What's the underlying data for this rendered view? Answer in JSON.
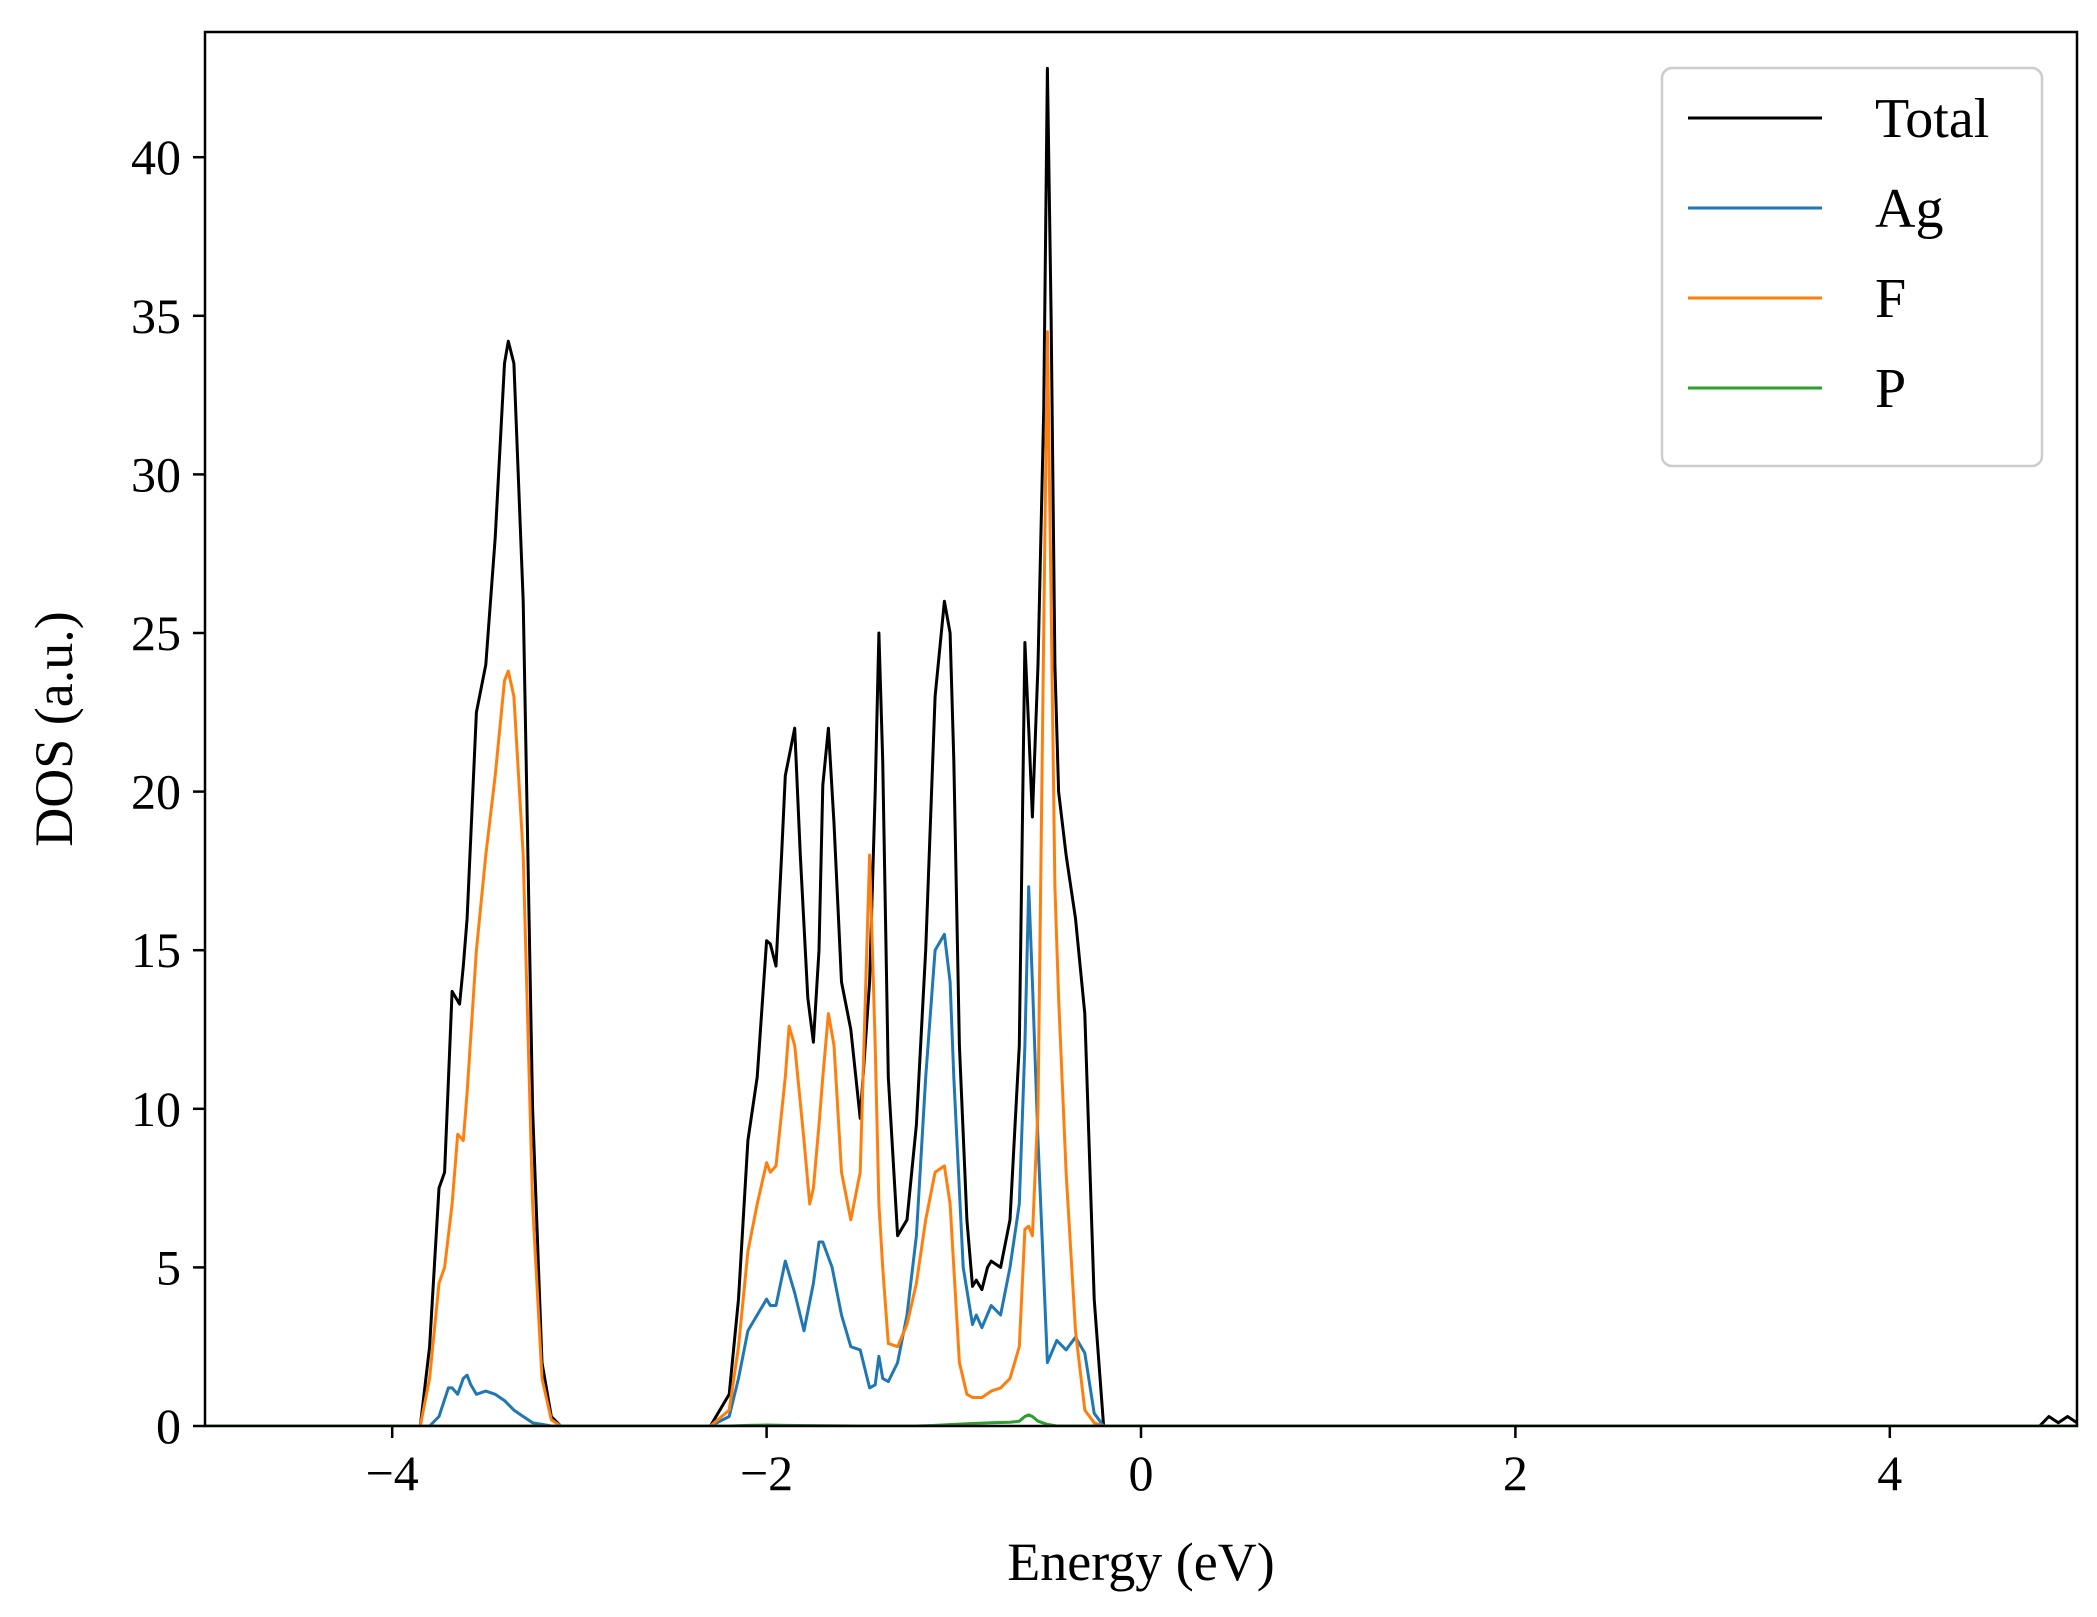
{
  "chart_data": {
    "type": "line",
    "title": "",
    "xlabel": "Energy (eV)",
    "ylabel": "DOS (a.u.)",
    "xlim": [
      -5,
      5
    ],
    "ylim": [
      0,
      44
    ],
    "xticks": [
      -4,
      -2,
      0,
      2,
      4
    ],
    "xtick_labels": [
      "−4",
      "−2",
      "0",
      "2",
      "4"
    ],
    "yticks": [
      0,
      5,
      10,
      15,
      20,
      25,
      30,
      35,
      40
    ],
    "ytick_labels": [
      "0",
      "5",
      "10",
      "15",
      "20",
      "25",
      "30",
      "35",
      "40"
    ],
    "grid": false,
    "legend_position": "top-right",
    "series": [
      {
        "name": "Total",
        "color": "#000000",
        "x": [
          -5.0,
          -3.85,
          -3.8,
          -3.75,
          -3.72,
          -3.68,
          -3.64,
          -3.62,
          -3.6,
          -3.55,
          -3.5,
          -3.45,
          -3.4,
          -3.38,
          -3.35,
          -3.3,
          -3.25,
          -3.2,
          -3.15,
          -3.1,
          -2.3,
          -2.2,
          -2.15,
          -2.1,
          -2.05,
          -2.0,
          -1.98,
          -1.95,
          -1.92,
          -1.9,
          -1.85,
          -1.82,
          -1.78,
          -1.75,
          -1.72,
          -1.7,
          -1.67,
          -1.64,
          -1.6,
          -1.55,
          -1.5,
          -1.45,
          -1.42,
          -1.4,
          -1.38,
          -1.35,
          -1.3,
          -1.25,
          -1.2,
          -1.15,
          -1.1,
          -1.05,
          -1.02,
          -1.0,
          -0.97,
          -0.93,
          -0.9,
          -0.88,
          -0.85,
          -0.82,
          -0.8,
          -0.75,
          -0.7,
          -0.65,
          -0.62,
          -0.6,
          -0.58,
          -0.55,
          -0.52,
          -0.5,
          -0.48,
          -0.46,
          -0.44,
          -0.4,
          -0.35,
          -0.3,
          -0.25,
          -0.2,
          4.8,
          4.85,
          4.9,
          4.95,
          5.0
        ],
        "y": [
          0,
          0,
          2.5,
          7.5,
          8.0,
          13.7,
          13.3,
          14.5,
          16,
          22.5,
          24,
          28,
          33.5,
          34.2,
          33.5,
          26,
          10,
          2,
          0.3,
          0,
          0,
          1,
          4,
          9,
          11,
          15.3,
          15.2,
          14.5,
          18,
          20.5,
          22,
          18,
          13.5,
          12.1,
          15,
          20.2,
          22,
          19,
          14,
          12.5,
          9.7,
          14,
          20,
          25,
          21,
          11,
          6,
          6.5,
          9.5,
          15,
          23,
          26,
          25,
          21,
          12,
          6.5,
          4.4,
          4.6,
          4.3,
          5.0,
          5.2,
          5.0,
          6.5,
          12,
          24.7,
          22,
          19.2,
          24,
          32,
          42.8,
          35,
          24,
          20,
          18,
          16,
          13,
          4,
          0,
          0,
          0.3,
          0.1,
          0.3,
          0.1
        ]
      },
      {
        "name": "Ag",
        "color": "#1f77b4",
        "x": [
          -5.0,
          -3.8,
          -3.75,
          -3.7,
          -3.68,
          -3.65,
          -3.62,
          -3.6,
          -3.58,
          -3.55,
          -3.5,
          -3.45,
          -3.4,
          -3.35,
          -3.3,
          -3.25,
          -3.2,
          -3.15,
          -2.3,
          -2.2,
          -2.15,
          -2.1,
          -2.05,
          -2.0,
          -1.98,
          -1.95,
          -1.9,
          -1.85,
          -1.8,
          -1.75,
          -1.72,
          -1.7,
          -1.65,
          -1.6,
          -1.55,
          -1.5,
          -1.45,
          -1.42,
          -1.4,
          -1.38,
          -1.35,
          -1.3,
          -1.25,
          -1.2,
          -1.15,
          -1.1,
          -1.05,
          -1.02,
          -1.0,
          -0.95,
          -0.9,
          -0.88,
          -0.85,
          -0.8,
          -0.75,
          -0.7,
          -0.65,
          -0.62,
          -0.6,
          -0.58,
          -0.55,
          -0.5,
          -0.45,
          -0.4,
          -0.35,
          -0.3,
          -0.25,
          -0.2,
          5.0
        ],
        "y": [
          0,
          0,
          0.3,
          1.2,
          1.2,
          1.0,
          1.5,
          1.6,
          1.3,
          1.0,
          1.1,
          1.0,
          0.8,
          0.5,
          0.3,
          0.1,
          0.05,
          0,
          0,
          0.3,
          1.5,
          3,
          3.5,
          4,
          3.8,
          3.8,
          5.2,
          4.2,
          3,
          4.5,
          5.8,
          5.8,
          5,
          3.5,
          2.5,
          2.4,
          1.2,
          1.3,
          2.2,
          1.5,
          1.4,
          2,
          3.5,
          6,
          11,
          15,
          15.5,
          14,
          11,
          5,
          3.2,
          3.5,
          3.1,
          3.8,
          3.5,
          5,
          7,
          12,
          17,
          14,
          9,
          2,
          2.7,
          2.4,
          2.8,
          2.3,
          0.4,
          0,
          0
        ]
      },
      {
        "name": "F",
        "color": "#ff7f0e",
        "x": [
          -5.0,
          -3.85,
          -3.8,
          -3.75,
          -3.72,
          -3.68,
          -3.65,
          -3.62,
          -3.6,
          -3.55,
          -3.5,
          -3.45,
          -3.4,
          -3.38,
          -3.35,
          -3.3,
          -3.25,
          -3.2,
          -3.15,
          -3.1,
          -2.3,
          -2.2,
          -2.15,
          -2.1,
          -2.05,
          -2.0,
          -1.98,
          -1.95,
          -1.9,
          -1.88,
          -1.85,
          -1.8,
          -1.77,
          -1.75,
          -1.72,
          -1.7,
          -1.67,
          -1.64,
          -1.6,
          -1.55,
          -1.5,
          -1.45,
          -1.42,
          -1.4,
          -1.38,
          -1.35,
          -1.3,
          -1.25,
          -1.2,
          -1.15,
          -1.1,
          -1.05,
          -1.02,
          -1.0,
          -0.97,
          -0.93,
          -0.9,
          -0.85,
          -0.8,
          -0.75,
          -0.7,
          -0.65,
          -0.62,
          -0.6,
          -0.58,
          -0.55,
          -0.52,
          -0.5,
          -0.48,
          -0.46,
          -0.44,
          -0.4,
          -0.35,
          -0.3,
          -0.25,
          -0.2,
          5.0
        ],
        "y": [
          0,
          0,
          1.5,
          4.5,
          5,
          7,
          9.2,
          9.0,
          10.5,
          15,
          18,
          20.5,
          23.5,
          23.8,
          23,
          18,
          7,
          1.5,
          0.2,
          0,
          0,
          0.5,
          2.5,
          5.5,
          7,
          8.3,
          8.0,
          8.2,
          11,
          12.6,
          12.0,
          9,
          7,
          7.5,
          9.5,
          11.0,
          13,
          12,
          8,
          6.5,
          8.0,
          18.0,
          12,
          7,
          5,
          2.6,
          2.5,
          3.2,
          4.5,
          6.5,
          8,
          8.2,
          7,
          5,
          2,
          1,
          0.9,
          0.9,
          1.1,
          1.2,
          1.5,
          2.5,
          6.2,
          6.3,
          6.0,
          10,
          25,
          34.5,
          26,
          17,
          13.5,
          8,
          3,
          0.5,
          0.1,
          0,
          0
        ]
      },
      {
        "name": "P",
        "color": "#2ca02c",
        "x": [
          -5.0,
          -2.2,
          -2.1,
          -2.0,
          -1.9,
          -1.5,
          -1.2,
          -1.1,
          -1.0,
          -0.9,
          -0.8,
          -0.7,
          -0.65,
          -0.62,
          -0.6,
          -0.58,
          -0.55,
          -0.5,
          -0.45,
          5.0
        ],
        "y": [
          0,
          0,
          0.02,
          0.03,
          0.02,
          0,
          0,
          0.02,
          0.05,
          0.08,
          0.1,
          0.12,
          0.15,
          0.3,
          0.35,
          0.3,
          0.15,
          0.05,
          0,
          0
        ]
      }
    ]
  }
}
